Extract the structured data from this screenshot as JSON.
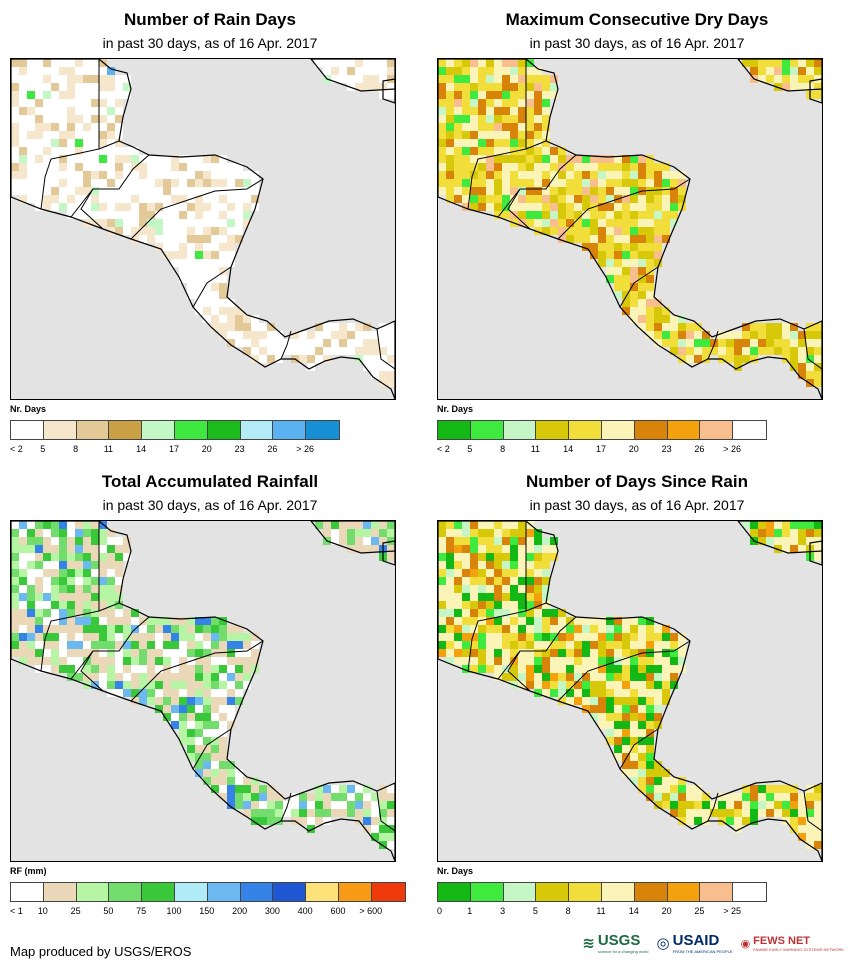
{
  "panels": [
    {
      "title": "Number of Rain Days",
      "subtitle": "in past 30 days, as of 16 Apr. 2017",
      "legend_title": "Nr. Days",
      "legend_colors": [
        "#ffffff",
        "#f6e6cc",
        "#e3c898",
        "#c9a043",
        "#c3f7c6",
        "#3ee840",
        "#1cbb1c",
        "#b3ebf7",
        "#5ab3f0",
        "#178fd4"
      ],
      "legend_labels": [
        "< 2",
        "5",
        "8",
        "11",
        "14",
        "17",
        "20",
        "23",
        "26",
        "> 26"
      ],
      "map_palette": [
        "#ffffff",
        "#f6e6cc",
        "#e3c898",
        "#c3f7c6",
        "#3ee840",
        "#5ab3f0"
      ],
      "map_weights": [
        60,
        25,
        11,
        2,
        1.5,
        0.5
      ]
    },
    {
      "title": "Maximum Consecutive Dry Days",
      "subtitle": "in past 30 days, as of 16 Apr. 2017",
      "legend_title": "Nr. Days",
      "legend_colors": [
        "#14b814",
        "#3eea3e",
        "#c6f5c6",
        "#d8c80a",
        "#f2de3a",
        "#fbf4b8",
        "#d8840a",
        "#f3a20e",
        "#f8be8e",
        "#ffffff"
      ],
      "legend_labels": [
        "< 2",
        "5",
        "8",
        "11",
        "14",
        "17",
        "20",
        "23",
        "26",
        "> 26"
      ],
      "map_palette": [
        "#f2de3a",
        "#fbf4b8",
        "#d8c80a",
        "#d8840a",
        "#f8be8e",
        "#3eea3e",
        "#c6f5c6"
      ],
      "map_weights": [
        32,
        24,
        14,
        14,
        6,
        6,
        4
      ]
    },
    {
      "title": "Total Accumulated Rainfall",
      "subtitle": "in past 30 days, as of 16 Apr. 2017",
      "legend_title": "RF (mm)",
      "legend_colors": [
        "#ffffff",
        "#ead8b8",
        "#b5f5a4",
        "#72dd6c",
        "#38c83a",
        "#b0ecf8",
        "#6cb8f0",
        "#3683e8",
        "#1e56d4",
        "#fde27a",
        "#f79a16",
        "#ef3a0c"
      ],
      "legend_labels": [
        "< 1",
        "10",
        "25",
        "50",
        "75",
        "100",
        "150",
        "200",
        "300",
        "400",
        "600",
        "> 600"
      ],
      "map_palette": [
        "#ead8b8",
        "#ffffff",
        "#b5f5a4",
        "#72dd6c",
        "#38c83a",
        "#6cb8f0",
        "#3683e8"
      ],
      "map_weights": [
        30,
        20,
        18,
        14,
        10,
        5,
        3
      ]
    },
    {
      "title": "Number of Days Since Rain",
      "subtitle": "in past 30 days, as of 16 Apr. 2017",
      "legend_title": "Nr. Days",
      "legend_colors": [
        "#14b814",
        "#3eea3e",
        "#c6f5c6",
        "#d8c80a",
        "#f2de3a",
        "#fbf4b8",
        "#d8840a",
        "#f3a20e",
        "#f8be8e",
        "#ffffff"
      ],
      "legend_labels": [
        "0",
        "1",
        "3",
        "5",
        "8",
        "11",
        "14",
        "20",
        "25",
        "> 25"
      ],
      "map_palette": [
        "#fbf4b8",
        "#f2de3a",
        "#d8c80a",
        "#14b814",
        "#3eea3e",
        "#d8840a",
        "#c6f5c6",
        "#f3a20e"
      ],
      "map_weights": [
        30,
        16,
        12,
        12,
        8,
        10,
        7,
        5
      ]
    }
  ],
  "footer": "Map produced by USGS/EROS",
  "logos": {
    "usgs": "USGS",
    "usgs_tag": "science for a changing world",
    "usaid": "USAID",
    "usaid_tag": "FROM THE AMERICAN PEOPLE",
    "fews": "FEWS NET",
    "fews_tag": "FAMINE EARLY WARNING SYSTEMS NETWORK"
  },
  "colors": {
    "ocean": "#e3e3e3",
    "border": "#000000"
  }
}
